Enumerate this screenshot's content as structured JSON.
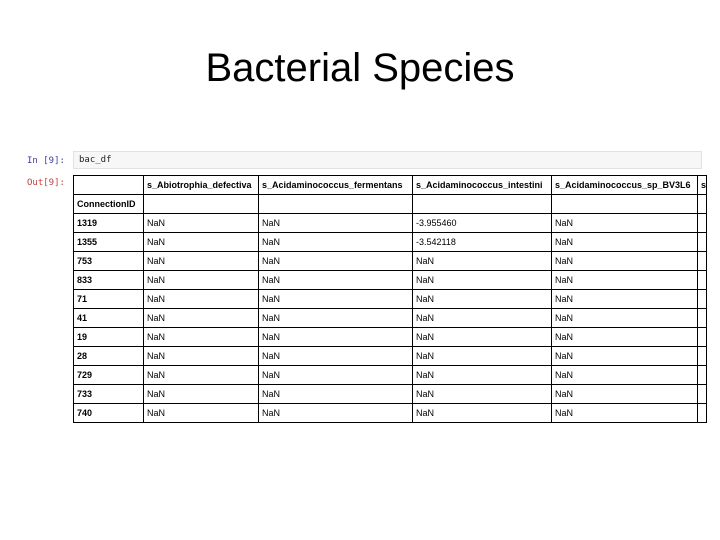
{
  "slide": {
    "title": "Bacterial Species"
  },
  "notebook": {
    "in_prompt": "In [9]:",
    "out_prompt": "Out[9]:",
    "code": "bac_df"
  },
  "table": {
    "index_name": "ConnectionID",
    "columns": [
      "s_Abiotrophia_defectiva",
      "s_Acidaminococcus_fermentans",
      "s_Acidaminococcus_intestini",
      "s_Acidaminococcus_sp_BV3L6",
      "s"
    ],
    "rows": [
      {
        "id": "1319",
        "values": [
          "NaN",
          "NaN",
          "-3.955460",
          "NaN"
        ]
      },
      {
        "id": "1355",
        "values": [
          "NaN",
          "NaN",
          "-3.542118",
          "NaN"
        ]
      },
      {
        "id": "753",
        "values": [
          "NaN",
          "NaN",
          "NaN",
          "NaN"
        ]
      },
      {
        "id": "833",
        "values": [
          "NaN",
          "NaN",
          "NaN",
          "NaN"
        ]
      },
      {
        "id": "71",
        "values": [
          "NaN",
          "NaN",
          "NaN",
          "NaN"
        ]
      },
      {
        "id": "41",
        "values": [
          "NaN",
          "NaN",
          "NaN",
          "NaN"
        ]
      },
      {
        "id": "19",
        "values": [
          "NaN",
          "NaN",
          "NaN",
          "NaN"
        ]
      },
      {
        "id": "28",
        "values": [
          "NaN",
          "NaN",
          "NaN",
          "NaN"
        ]
      },
      {
        "id": "729",
        "values": [
          "NaN",
          "NaN",
          "NaN",
          "NaN"
        ]
      },
      {
        "id": "733",
        "values": [
          "NaN",
          "NaN",
          "NaN",
          "NaN"
        ]
      },
      {
        "id": "740",
        "values": [
          "NaN",
          "NaN",
          "NaN",
          "NaN"
        ]
      }
    ]
  }
}
